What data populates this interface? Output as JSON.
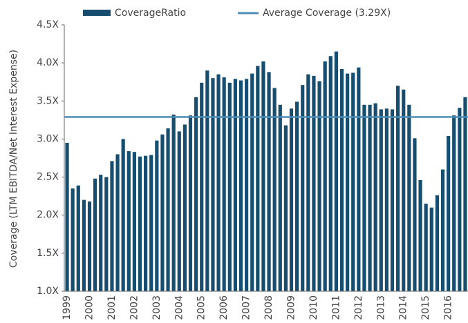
{
  "chart_data": {
    "type": "bar",
    "y_label": "Coverage (LTM EBITDA/Net Interest Expense)",
    "categories": [
      "1999",
      null,
      null,
      null,
      "2000",
      null,
      null,
      null,
      "2001",
      null,
      null,
      null,
      "2002",
      null,
      null,
      null,
      "2003",
      null,
      null,
      null,
      "2004",
      null,
      null,
      null,
      "2005",
      null,
      null,
      null,
      "2006",
      null,
      null,
      null,
      "2007",
      null,
      null,
      null,
      "2008",
      null,
      null,
      null,
      "2009",
      null,
      null,
      null,
      "2010",
      null,
      null,
      null,
      "2011",
      null,
      null,
      null,
      "2012",
      null,
      null,
      null,
      "2013",
      null,
      null,
      null,
      "2014",
      null,
      null,
      null,
      "2015",
      null,
      null,
      null,
      "2016",
      null,
      null,
      null
    ],
    "series": [
      {
        "name": "CoverageRatio",
        "color": "#174e70",
        "values": [
          2.95,
          2.35,
          2.39,
          2.2,
          2.18,
          2.48,
          2.53,
          2.5,
          2.71,
          2.8,
          3.0,
          2.84,
          2.83,
          2.77,
          2.78,
          2.79,
          2.98,
          3.06,
          3.14,
          3.32,
          3.1,
          3.19,
          3.31,
          3.55,
          3.74,
          3.9,
          3.8,
          3.85,
          3.81,
          3.74,
          3.79,
          3.77,
          3.79,
          3.86,
          3.96,
          4.02,
          3.88,
          3.67,
          3.45,
          3.18,
          3.4,
          3.49,
          3.71,
          3.85,
          3.83,
          3.76,
          4.02,
          4.09,
          4.15,
          3.92,
          3.86,
          3.87,
          3.94,
          3.45,
          3.45,
          3.47,
          3.39,
          3.4,
          3.39,
          3.7,
          3.65,
          3.45,
          3.01,
          2.46,
          2.15,
          2.1,
          2.26,
          2.6,
          3.04,
          3.31,
          3.41,
          3.55
        ]
      }
    ],
    "average": {
      "name": "Average Coverage (3.29X)",
      "value": 3.29,
      "color": "#4b8db6"
    },
    "ylim": [
      1.0,
      4.5
    ],
    "yticks": [
      {
        "value": 1.0,
        "label": "1.0X"
      },
      {
        "value": 1.5,
        "label": "1.5X"
      },
      {
        "value": 2.0,
        "label": "2.0X"
      },
      {
        "value": 2.5,
        "label": "2.5X"
      },
      {
        "value": 3.0,
        "label": "3.0X"
      },
      {
        "value": 3.5,
        "label": "3.5X"
      },
      {
        "value": 4.0,
        "label": "4.0X"
      },
      {
        "value": 4.5,
        "label": "4.5X"
      }
    ],
    "grid": false
  }
}
